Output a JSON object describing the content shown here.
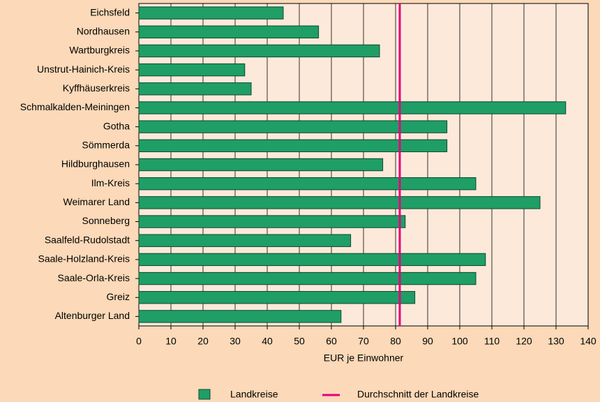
{
  "chart_data": {
    "type": "bar",
    "orientation": "horizontal",
    "categories": [
      "Eichsfeld",
      "Nordhausen",
      "Wartburgkreis",
      "Unstrut-Hainich-Kreis",
      "Kyffhäuserkreis",
      "Schmalkalden-Meiningen",
      "Gotha",
      "Sömmerda",
      "Hildburghausen",
      "Ilm-Kreis",
      "Weimarer Land",
      "Sonneberg",
      "Saalfeld-Rudolstadt",
      "Saale-Holzland-Kreis",
      "Saale-Orla-Kreis",
      "Greiz",
      "Altenburger Land"
    ],
    "series": [
      {
        "name": "Landkreise",
        "color": "#1f9e66",
        "values": [
          45,
          56,
          75,
          33,
          35,
          133,
          96,
          96,
          76,
          105,
          125,
          83,
          66,
          108,
          105,
          86,
          63
        ]
      }
    ],
    "reference_line": {
      "name": "Durchschnitt der Landkreise",
      "color": "#e6007e",
      "value": 81.3
    },
    "xlabel": "EUR je Einwohner",
    "xlim": [
      0,
      140
    ],
    "xticks": [
      0,
      10,
      20,
      30,
      40,
      50,
      60,
      70,
      80,
      90,
      100,
      110,
      120,
      130,
      140
    ],
    "grid": true
  }
}
